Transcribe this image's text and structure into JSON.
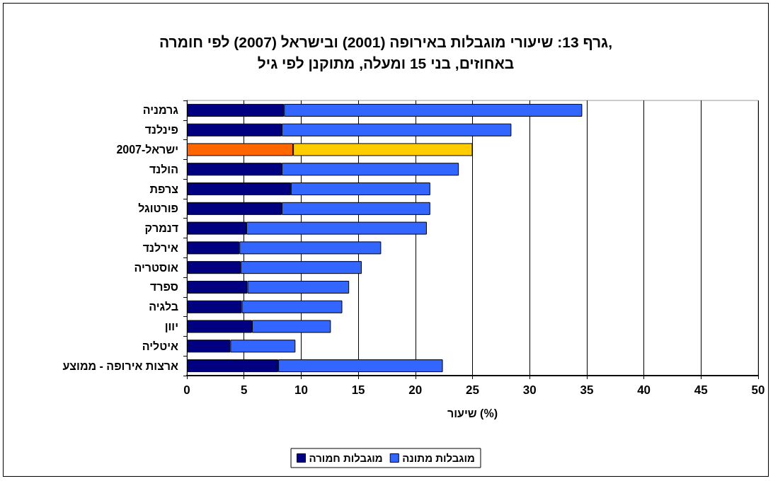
{
  "chart_data": {
    "type": "bar",
    "orientation": "horizontal",
    "stacked": true,
    "title": "גרף 13: שיעורי מוגבלות באירופה (2001) ובישראל (2007) לפי חומרה,\nבאחוזים, בני 15 ומעלה, מתוקנן לפי גיל",
    "xlabel": "שיעור (%)",
    "categories": [
      "גרמניה",
      "פינלנד",
      "ישראל-2007",
      "הולנד",
      "צרפת",
      "פורטוגל",
      "דנמרק",
      "אירלנד",
      "אוסטריה",
      "ספרד",
      "בלגיה",
      "יוון",
      "איטליה",
      "ארצות אירופה - ממוצע"
    ],
    "series": [
      {
        "name": "מוגבלות חמורה",
        "color": "#000080",
        "colors": [
          "#000080",
          "#000080",
          "#ff6600",
          "#000080",
          "#000080",
          "#000080",
          "#000080",
          "#000080",
          "#000080",
          "#000080",
          "#000080",
          "#000080",
          "#000080",
          "#000080"
        ],
        "values": [
          8.5,
          8.3,
          9.3,
          8.3,
          9.1,
          8.3,
          5.2,
          4.6,
          4.7,
          5.3,
          4.8,
          5.7,
          3.8,
          8.0
        ]
      },
      {
        "name": "מוגבלות מתונה",
        "color": "#3366ff",
        "colors": [
          "#3366ff",
          "#3366ff",
          "#ffcc00",
          "#3366ff",
          "#3366ff",
          "#3366ff",
          "#3366ff",
          "#3366ff",
          "#3366ff",
          "#3366ff",
          "#3366ff",
          "#3366ff",
          "#3366ff",
          "#3366ff"
        ],
        "values": [
          26.1,
          20.1,
          15.7,
          15.5,
          12.2,
          13.0,
          15.8,
          12.4,
          10.6,
          8.9,
          8.8,
          6.9,
          5.7,
          14.4
        ]
      }
    ],
    "xlim": [
      0,
      50
    ],
    "xticks": [
      0,
      5,
      10,
      15,
      20,
      25,
      30,
      35,
      40,
      45,
      50
    ],
    "grid": "x",
    "legend": "bottom"
  }
}
